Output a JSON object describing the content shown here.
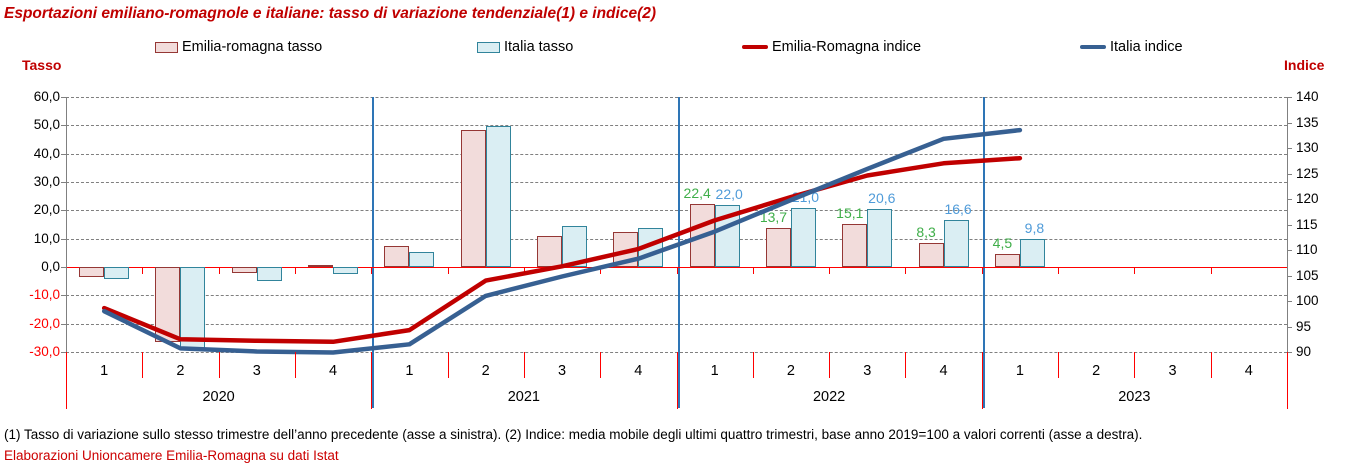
{
  "title": "Esportazioni emiliano-romagnole e italiane: tasso di variazione tendenziale(1) e indice(2)",
  "axes": {
    "left_title": "Tasso",
    "right_title": "Indice"
  },
  "legend": [
    {
      "label": "Emilia-romagna tasso",
      "type": "bar",
      "fill": "#F2DCDB",
      "border": "#953735"
    },
    {
      "label": "Italia tasso",
      "type": "bar",
      "fill": "#DAEEF3",
      "border": "#31849B"
    },
    {
      "label": "Emilia-Romagna indice",
      "type": "line",
      "color": "#C00000"
    },
    {
      "label": "Italia indice",
      "type": "line",
      "color": "#376092"
    }
  ],
  "footnotes": {
    "note": "(1) Tasso di variazione sullo stesso trimestre dell’anno precedente (asse a sinistra). (2) Indice: media mobile degli ultimi quattro trimestri, base anno 2019=100 a valori correnti (asse a destra).",
    "source": "Elaborazioni Unioncamere Emilia-Romagna su dati Istat"
  },
  "chart_data": {
    "type": "combo bar+line, quarterly categories",
    "years": [
      "2020",
      "2021",
      "2022",
      "2023"
    ],
    "quarter_labels": [
      "1",
      "2",
      "3",
      "4"
    ],
    "left_axis": {
      "title": "Tasso",
      "min": -30,
      "max": 60,
      "step": 10,
      "tick_labels": [
        "60,0",
        "50,0",
        "40,0",
        "30,0",
        "20,0",
        "10,0",
        "0,0",
        "-10,0",
        "-20,0",
        "-30,0"
      ],
      "negative_label_color": "#FF0000"
    },
    "right_axis": {
      "title": "Indice",
      "min": 90,
      "max": 140,
      "step": 5,
      "tick_labels": [
        "140",
        "135",
        "130",
        "125",
        "120",
        "115",
        "110",
        "105",
        "100",
        "95",
        "90"
      ]
    },
    "grid": "horizontal dashed gray",
    "zero_line_color": "#FF0000",
    "year_separator_color": "#2E75B6",
    "series": [
      {
        "name": "Emilia-romagna tasso",
        "type": "bar",
        "axis": "left",
        "fill": "#F2DCDB",
        "border": "#953735",
        "label_color": "#3FAE49",
        "values": [
          -3.4,
          -26.5,
          -2.2,
          0.8,
          7.5,
          48.5,
          11.0,
          12.2,
          22.4,
          13.7,
          15.1,
          8.3,
          4.5,
          null,
          null,
          null
        ],
        "labels": [
          null,
          null,
          null,
          null,
          null,
          null,
          null,
          null,
          "22,4",
          "13,7",
          "15,1",
          "8,3",
          "4,5",
          null,
          null,
          null
        ]
      },
      {
        "name": "Italia tasso",
        "type": "bar",
        "axis": "left",
        "fill": "#DAEEF3",
        "border": "#31849B",
        "label_color": "#4F9BD9",
        "values": [
          -4.3,
          -29.3,
          -4.9,
          -2.5,
          5.3,
          49.8,
          14.5,
          13.9,
          22.0,
          21.0,
          20.6,
          16.6,
          9.8,
          null,
          null,
          null
        ],
        "labels": [
          null,
          null,
          null,
          null,
          null,
          null,
          null,
          null,
          "22,0",
          "21,0",
          "20,6",
          "16,6",
          "9,8",
          null,
          null,
          null
        ]
      },
      {
        "name": "Emilia-Romagna indice",
        "type": "line",
        "axis": "right",
        "color": "#C00000",
        "values": [
          98.6,
          92.5,
          92.2,
          92.0,
          94.3,
          104.0,
          106.8,
          110.2,
          115.8,
          120.4,
          124.6,
          127.0,
          128.0,
          null,
          null,
          null
        ]
      },
      {
        "name": "Italia indice",
        "type": "line",
        "axis": "right",
        "color": "#376092",
        "values": [
          98.0,
          90.7,
          90.1,
          89.9,
          91.5,
          101.0,
          104.8,
          108.3,
          113.6,
          119.8,
          125.9,
          131.8,
          133.5,
          null,
          null,
          null
        ]
      }
    ]
  }
}
